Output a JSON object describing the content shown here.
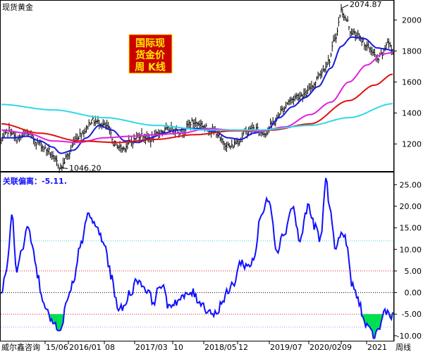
{
  "header": {
    "title": "现货黄金",
    "badge_lines": [
      "国际现",
      "货金价",
      "周 K线"
    ],
    "indicator_label": "关联偏离：-5.11.",
    "footer_left": "威尔鑫咨询",
    "footer_right": "周线"
  },
  "colors": {
    "price": "#000000",
    "ma_blue": "#1a1adc",
    "ma_magenta": "#e020e0",
    "ma_red": "#e01010",
    "ma_cyan": "#30d8e8",
    "indicator": "#1010ff",
    "fill_negative": "#00e050",
    "badge_bg": "#cc0000",
    "badge_text": "#ffeb00",
    "line_upper": "#30d0e0",
    "line_red_dashed": "#e02020",
    "line_zero": "#000000"
  },
  "chart_data": [
    {
      "type": "line",
      "title": "现货黄金",
      "y_ticks": [
        1200,
        1400,
        1600,
        1800,
        2000
      ],
      "ylim": [
        1030,
        2120
      ],
      "x_ticks": [
        "15/06",
        "2016/01",
        "08",
        "2017/03",
        "10",
        "2018/05",
        "12",
        "2019/07",
        "2020/02",
        "09",
        "2021"
      ],
      "annotations": [
        {
          "text": "2074.87",
          "x_index": 264,
          "value": 2074.87
        },
        {
          "text": "1046.20",
          "x_index": 46,
          "value": 1046.2
        }
      ],
      "series": [
        {
          "role": "price",
          "anchors": [
            [
              0,
              1220
            ],
            [
              6,
              1290
            ],
            [
              12,
              1230
            ],
            [
              20,
              1270
            ],
            [
              28,
              1210
            ],
            [
              36,
              1160
            ],
            [
              42,
              1090
            ],
            [
              46,
              1050
            ],
            [
              52,
              1130
            ],
            [
              58,
              1240
            ],
            [
              64,
              1280
            ],
            [
              70,
              1350
            ],
            [
              76,
              1340
            ],
            [
              82,
              1310
            ],
            [
              88,
              1200
            ],
            [
              94,
              1170
            ],
            [
              100,
              1210
            ],
            [
              108,
              1260
            ],
            [
              116,
              1230
            ],
            [
              124,
              1280
            ],
            [
              132,
              1300
            ],
            [
              140,
              1280
            ],
            [
              148,
              1340
            ],
            [
              154,
              1330
            ],
            [
              160,
              1300
            ],
            [
              166,
              1280
            ],
            [
              172,
              1210
            ],
            [
              178,
              1180
            ],
            [
              184,
              1220
            ],
            [
              190,
              1280
            ],
            [
              196,
              1300
            ],
            [
              204,
              1270
            ],
            [
              212,
              1340
            ],
            [
              218,
              1420
            ],
            [
              224,
              1480
            ],
            [
              230,
              1510
            ],
            [
              236,
              1520
            ],
            [
              242,
              1580
            ],
            [
              248,
              1660
            ],
            [
              254,
              1730
            ],
            [
              260,
              1900
            ],
            [
              264,
              2060
            ],
            [
              268,
              2000
            ],
            [
              272,
              1920
            ],
            [
              276,
              1900
            ],
            [
              280,
              1870
            ],
            [
              284,
              1830
            ],
            [
              288,
              1800
            ],
            [
              292,
              1740
            ],
            [
              296,
              1780
            ],
            [
              300,
              1860
            ],
            [
              304,
              1800
            ]
          ]
        },
        {
          "role": "ma_short",
          "anchors": [
            [
              0,
              1240
            ],
            [
              10,
              1240
            ],
            [
              20,
              1250
            ],
            [
              30,
              1220
            ],
            [
              40,
              1180
            ],
            [
              46,
              1140
            ],
            [
              56,
              1160
            ],
            [
              66,
              1240
            ],
            [
              76,
              1320
            ],
            [
              86,
              1290
            ],
            [
              96,
              1220
            ],
            [
              106,
              1210
            ],
            [
              116,
              1240
            ],
            [
              126,
              1270
            ],
            [
              136,
              1290
            ],
            [
              146,
              1300
            ],
            [
              156,
              1300
            ],
            [
              166,
              1280
            ],
            [
              176,
              1240
            ],
            [
              186,
              1230
            ],
            [
              196,
              1270
            ],
            [
              206,
              1290
            ],
            [
              216,
              1370
            ],
            [
              226,
              1440
            ],
            [
              236,
              1500
            ],
            [
              246,
              1570
            ],
            [
              256,
              1690
            ],
            [
              264,
              1830
            ],
            [
              272,
              1890
            ],
            [
              282,
              1880
            ],
            [
              292,
              1820
            ],
            [
              300,
              1810
            ],
            [
              304,
              1800
            ]
          ]
        },
        {
          "role": "ma_mid",
          "anchors": [
            [
              0,
              1290
            ],
            [
              20,
              1270
            ],
            [
              40,
              1220
            ],
            [
              60,
              1210
            ],
            [
              80,
              1240
            ],
            [
              100,
              1250
            ],
            [
              120,
              1260
            ],
            [
              140,
              1270
            ],
            [
              160,
              1300
            ],
            [
              180,
              1290
            ],
            [
              200,
              1280
            ],
            [
              220,
              1310
            ],
            [
              240,
              1390
            ],
            [
              256,
              1470
            ],
            [
              270,
              1600
            ],
            [
              284,
              1710
            ],
            [
              296,
              1780
            ],
            [
              304,
              1790
            ]
          ]
        },
        {
          "role": "ma_long",
          "anchors": [
            [
              0,
              1330
            ],
            [
              30,
              1270
            ],
            [
              60,
              1220
            ],
            [
              90,
              1210
            ],
            [
              120,
              1230
            ],
            [
              150,
              1260
            ],
            [
              180,
              1285
            ],
            [
              210,
              1290
            ],
            [
              240,
              1330
            ],
            [
              270,
              1480
            ],
            [
              290,
              1580
            ],
            [
              304,
              1650
            ]
          ]
        },
        {
          "role": "ma_longest",
          "anchors": [
            [
              0,
              1455
            ],
            [
              40,
              1420
            ],
            [
              80,
              1370
            ],
            [
              120,
              1320
            ],
            [
              160,
              1290
            ],
            [
              200,
              1290
            ],
            [
              240,
              1320
            ],
            [
              270,
              1370
            ],
            [
              304,
              1460
            ]
          ]
        }
      ]
    },
    {
      "type": "line",
      "title": "关联偏离：-5.11.",
      "y_ticks": [
        25,
        20,
        15,
        10,
        5,
        0,
        -5,
        -10
      ],
      "ylim": [
        -11,
        27.5
      ],
      "reference_lines": [
        {
          "value": 12,
          "style": "dotted",
          "role": "upper"
        },
        {
          "value": 5,
          "style": "dotted",
          "role": "red"
        },
        {
          "value": 0,
          "style": "dotted",
          "role": "zero"
        },
        {
          "value": -5,
          "style": "dotted",
          "role": "red"
        },
        {
          "value": -8,
          "style": "dotted",
          "role": "lower"
        }
      ],
      "current_value": -5.11,
      "fill_below": -5,
      "anchors": [
        [
          0,
          0
        ],
        [
          4,
          5
        ],
        [
          8,
          18
        ],
        [
          12,
          5
        ],
        [
          16,
          10
        ],
        [
          20,
          16
        ],
        [
          24,
          12
        ],
        [
          28,
          4
        ],
        [
          32,
          -1
        ],
        [
          36,
          -5
        ],
        [
          42,
          -8
        ],
        [
          46,
          -9.5
        ],
        [
          50,
          -3
        ],
        [
          56,
          2
        ],
        [
          62,
          12
        ],
        [
          68,
          18
        ],
        [
          74,
          15
        ],
        [
          80,
          11
        ],
        [
          86,
          3
        ],
        [
          90,
          -3
        ],
        [
          94,
          -4
        ],
        [
          100,
          0
        ],
        [
          106,
          3
        ],
        [
          112,
          1
        ],
        [
          118,
          -2
        ],
        [
          124,
          2
        ],
        [
          130,
          -3
        ],
        [
          136,
          -2
        ],
        [
          142,
          -1
        ],
        [
          148,
          0
        ],
        [
          154,
          -2
        ],
        [
          160,
          -4
        ],
        [
          166,
          -5
        ],
        [
          172,
          -2
        ],
        [
          176,
          0
        ],
        [
          180,
          2
        ],
        [
          186,
          7
        ],
        [
          192,
          6
        ],
        [
          196,
          8
        ],
        [
          202,
          18
        ],
        [
          208,
          22
        ],
        [
          214,
          10
        ],
        [
          220,
          14
        ],
        [
          226,
          20
        ],
        [
          232,
          12
        ],
        [
          238,
          20
        ],
        [
          244,
          15
        ],
        [
          248,
          12
        ],
        [
          252,
          26
        ],
        [
          256,
          18
        ],
        [
          260,
          10
        ],
        [
          264,
          14
        ],
        [
          268,
          12
        ],
        [
          272,
          2
        ],
        [
          278,
          -2
        ],
        [
          282,
          -7
        ],
        [
          286,
          -9
        ],
        [
          290,
          -10
        ],
        [
          294,
          -8
        ],
        [
          298,
          -4
        ],
        [
          302,
          -5.11
        ]
      ]
    }
  ]
}
